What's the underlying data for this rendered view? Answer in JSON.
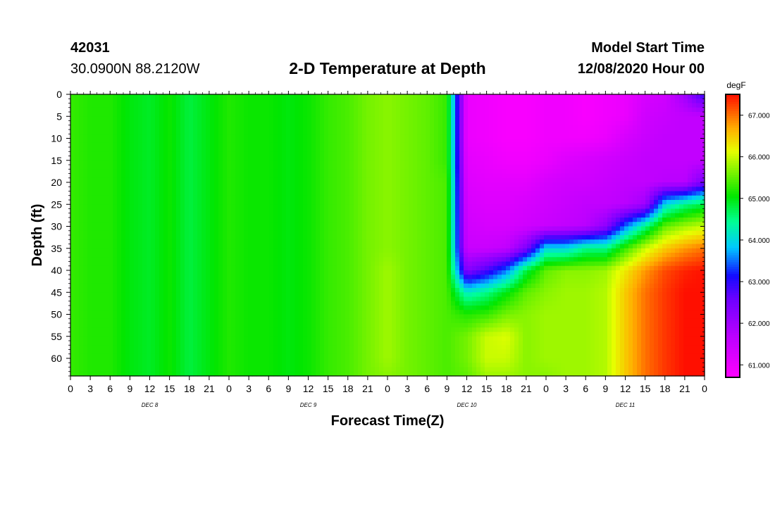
{
  "header": {
    "station_id": "42031",
    "location": "30.0900N 88.2120W",
    "title": "2-D Temperature at Depth",
    "model_label": "Model Start Time",
    "model_time": "12/08/2020 Hour 00"
  },
  "chart_data": {
    "type": "heatmap",
    "title": "2-D Temperature at Depth",
    "xlabel": "Forecast Time(Z)",
    "ylabel": "Depth (ft)",
    "x_tick_labels": [
      "0",
      "3",
      "6",
      "9",
      "12",
      "15",
      "18",
      "21",
      "0",
      "3",
      "6",
      "9",
      "12",
      "15",
      "18",
      "21",
      "0",
      "3",
      "6",
      "9",
      "12",
      "15",
      "18",
      "21",
      "0",
      "3",
      "6",
      "9",
      "12",
      "15",
      "18",
      "21",
      "0"
    ],
    "day_labels": [
      {
        "label": "DEC 8",
        "hour": 12
      },
      {
        "label": "DEC 9",
        "hour": 36
      },
      {
        "label": "DEC 10",
        "hour": 60
      },
      {
        "label": "DEC 11",
        "hour": 84
      }
    ],
    "xlim_hours": [
      0,
      96
    ],
    "ylim_ft": [
      0,
      64
    ],
    "y_ticks": [
      0,
      5,
      10,
      15,
      20,
      25,
      30,
      35,
      40,
      45,
      50,
      55,
      60
    ],
    "y_inverted": true,
    "colorbar": {
      "unit": "degF",
      "range": [
        60.7,
        67.5
      ],
      "tick_values": [
        61.0,
        62.0,
        63.0,
        64.0,
        65.0,
        66.0,
        67.0
      ],
      "tick_labels": [
        "61.000",
        "62.000",
        "63.000",
        "64.000",
        "65.000",
        "66.000",
        "67.000"
      ]
    },
    "depths_ft": [
      0,
      5,
      10,
      15,
      20,
      25,
      30,
      35,
      40,
      45,
      50,
      55,
      60,
      64
    ],
    "hours": [
      0,
      3,
      6,
      9,
      12,
      15,
      18,
      21,
      24,
      27,
      30,
      33,
      36,
      39,
      42,
      45,
      48,
      51,
      54,
      57,
      60,
      63,
      66,
      69,
      72,
      75,
      78,
      81,
      84,
      87,
      90,
      93,
      96
    ],
    "temperature_degF": [
      [
        65.3,
        65.2,
        65.2,
        65.0,
        64.9,
        65.1,
        64.8,
        65.0,
        65.2,
        65.1,
        65.1,
        65.0,
        65.1,
        65.3,
        65.4,
        65.6,
        65.7,
        65.6,
        65.5,
        65.3,
        61.0,
        60.9,
        60.8,
        60.8,
        60.9,
        60.9,
        60.8,
        60.9,
        61.0,
        61.3,
        61.4,
        62.0,
        63.0
      ],
      [
        65.3,
        65.2,
        65.2,
        65.0,
        64.9,
        65.1,
        64.8,
        65.0,
        65.2,
        65.1,
        65.1,
        65.0,
        65.1,
        65.3,
        65.4,
        65.6,
        65.7,
        65.6,
        65.5,
        65.3,
        61.0,
        60.9,
        60.8,
        60.8,
        60.9,
        60.9,
        60.8,
        60.9,
        61.0,
        61.4,
        61.5,
        61.6,
        61.6
      ],
      [
        65.3,
        65.2,
        65.2,
        65.0,
        64.9,
        65.1,
        64.8,
        65.0,
        65.2,
        65.1,
        65.1,
        65.0,
        65.1,
        65.3,
        65.4,
        65.6,
        65.7,
        65.6,
        65.5,
        65.3,
        61.0,
        60.9,
        60.8,
        60.8,
        60.9,
        60.9,
        60.9,
        61.0,
        61.3,
        61.5,
        61.6,
        61.6,
        61.6
      ],
      [
        65.3,
        65.2,
        65.2,
        65.0,
        64.9,
        65.1,
        64.8,
        65.0,
        65.2,
        65.1,
        65.1,
        65.0,
        65.1,
        65.3,
        65.4,
        65.6,
        65.7,
        65.6,
        65.5,
        65.3,
        61.1,
        61.0,
        60.9,
        60.9,
        61.0,
        61.2,
        61.3,
        61.4,
        61.5,
        61.6,
        61.6,
        61.6,
        61.6
      ],
      [
        65.3,
        65.2,
        65.2,
        65.0,
        64.9,
        65.1,
        64.8,
        65.0,
        65.2,
        65.1,
        65.1,
        65.0,
        65.1,
        65.3,
        65.4,
        65.6,
        65.7,
        65.6,
        65.5,
        65.4,
        61.2,
        61.1,
        61.1,
        61.1,
        61.3,
        61.4,
        61.4,
        61.5,
        61.6,
        61.6,
        61.7,
        61.7,
        62.5
      ],
      [
        65.3,
        65.2,
        65.2,
        65.0,
        64.9,
        65.1,
        64.8,
        65.0,
        65.2,
        65.1,
        65.1,
        65.0,
        65.1,
        65.3,
        65.4,
        65.6,
        65.7,
        65.6,
        65.5,
        65.4,
        61.3,
        61.2,
        61.2,
        61.3,
        61.4,
        61.5,
        61.6,
        61.6,
        61.7,
        62.0,
        64.0,
        64.5,
        64.8
      ],
      [
        65.3,
        65.2,
        65.2,
        65.0,
        64.9,
        65.1,
        64.8,
        65.0,
        65.2,
        65.1,
        65.1,
        65.0,
        65.1,
        65.3,
        65.4,
        65.6,
        65.7,
        65.6,
        65.5,
        65.4,
        61.4,
        61.3,
        61.3,
        61.4,
        61.5,
        61.6,
        61.7,
        62.2,
        63.5,
        64.5,
        65.5,
        65.8,
        66.0
      ],
      [
        65.3,
        65.2,
        65.2,
        65.0,
        64.9,
        65.1,
        64.8,
        65.0,
        65.2,
        65.1,
        65.1,
        65.0,
        65.1,
        65.3,
        65.4,
        65.6,
        65.7,
        65.6,
        65.5,
        65.4,
        61.5,
        61.5,
        61.6,
        62.4,
        64.0,
        64.0,
        64.5,
        64.5,
        65.3,
        66.0,
        66.5,
        66.8,
        67.0
      ],
      [
        65.3,
        65.2,
        65.2,
        65.0,
        64.9,
        65.1,
        64.8,
        65.0,
        65.2,
        65.1,
        65.1,
        65.0,
        65.1,
        65.3,
        65.4,
        65.6,
        65.8,
        65.6,
        65.5,
        65.4,
        62.3,
        62.8,
        63.5,
        64.8,
        65.5,
        65.7,
        65.7,
        65.8,
        66.3,
        66.8,
        67.2,
        67.4,
        67.5
      ],
      [
        65.3,
        65.2,
        65.2,
        65.0,
        64.9,
        65.1,
        64.8,
        65.0,
        65.2,
        65.1,
        65.1,
        65.0,
        65.1,
        65.3,
        65.4,
        65.6,
        65.8,
        65.6,
        65.5,
        65.4,
        64.2,
        64.5,
        65.0,
        65.5,
        65.7,
        65.8,
        65.8,
        65.9,
        66.5,
        67.0,
        67.3,
        67.5,
        67.5
      ],
      [
        65.3,
        65.2,
        65.2,
        65.0,
        64.9,
        65.1,
        64.8,
        65.0,
        65.2,
        65.1,
        65.1,
        65.0,
        65.1,
        65.3,
        65.4,
        65.6,
        65.8,
        65.6,
        65.5,
        65.4,
        65.2,
        65.3,
        65.6,
        65.7,
        65.8,
        65.8,
        65.8,
        65.9,
        66.5,
        67.0,
        67.3,
        67.5,
        67.5
      ],
      [
        65.3,
        65.2,
        65.2,
        65.0,
        64.9,
        65.1,
        64.8,
        65.0,
        65.2,
        65.1,
        65.1,
        65.0,
        65.1,
        65.3,
        65.4,
        65.6,
        65.8,
        65.6,
        65.5,
        65.4,
        65.6,
        66.0,
        66.1,
        65.7,
        65.8,
        65.8,
        65.8,
        65.9,
        66.5,
        67.0,
        67.3,
        67.5,
        67.5
      ],
      [
        65.3,
        65.2,
        65.2,
        65.0,
        64.9,
        65.1,
        64.8,
        65.0,
        65.2,
        65.1,
        65.1,
        65.0,
        65.1,
        65.3,
        65.4,
        65.6,
        65.8,
        65.6,
        65.5,
        65.4,
        65.6,
        66.0,
        66.0,
        65.7,
        65.8,
        65.8,
        65.8,
        65.9,
        66.5,
        67.0,
        67.3,
        67.5,
        67.5
      ],
      [
        65.3,
        65.2,
        65.2,
        65.0,
        64.9,
        65.1,
        64.8,
        65.0,
        65.2,
        65.1,
        65.1,
        65.0,
        65.1,
        65.3,
        65.4,
        65.6,
        65.7,
        65.6,
        65.5,
        65.4,
        65.5,
        65.8,
        65.8,
        65.7,
        65.7,
        65.8,
        65.8,
        65.9,
        66.5,
        67.0,
        67.3,
        67.5,
        67.5
      ]
    ]
  }
}
